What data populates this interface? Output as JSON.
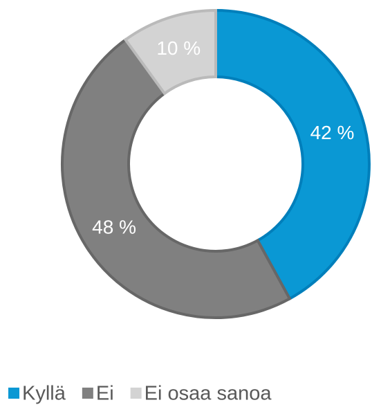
{
  "chart_data": {
    "type": "donut",
    "categories": [
      "Kyllä",
      "Ei",
      "Ei osaa sanoa"
    ],
    "values": [
      42,
      48,
      10
    ],
    "value_labels": [
      "42 %",
      "48 %",
      "10 %"
    ],
    "colors": [
      "#0a98d4",
      "#808080",
      "#d3d3d3"
    ],
    "legend": "bottom"
  }
}
